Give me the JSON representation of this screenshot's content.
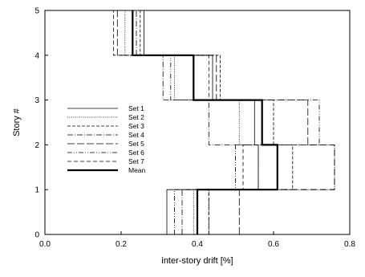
{
  "chart_data": {
    "type": "line",
    "title": "",
    "xlabel": "inter-story drift [%]",
    "ylabel": "Story #",
    "xlim": [
      0,
      0.8
    ],
    "ylim": [
      0,
      5
    ],
    "xticks": [
      "0.0",
      "0.2",
      "0.4",
      "0.6",
      "0.8"
    ],
    "yticks": [
      "0",
      "1",
      "2",
      "3",
      "4",
      "5"
    ],
    "grid": false,
    "legend_position": "left",
    "stories": [
      1,
      2,
      3,
      4,
      5
    ],
    "series": [
      {
        "name": "Set 1",
        "dash": "",
        "width": 0.8,
        "values": [
          0.32,
          0.56,
          0.55,
          0.44,
          0.26
        ]
      },
      {
        "name": "Set 2",
        "dash": "1,1.5",
        "width": 0.8,
        "values": [
          0.39,
          0.56,
          0.51,
          0.34,
          0.21
        ]
      },
      {
        "name": "Set 3",
        "dash": "4,2",
        "width": 0.8,
        "values": [
          0.43,
          0.65,
          0.6,
          0.46,
          0.25
        ]
      },
      {
        "name": "Set 4",
        "dash": "7,2,1,2",
        "width": 0.8,
        "values": [
          0.36,
          0.76,
          0.43,
          0.31,
          0.24
        ]
      },
      {
        "name": "Set 5",
        "dash": "9,3",
        "width": 0.8,
        "values": [
          0.51,
          0.76,
          0.69,
          0.45,
          0.19
        ]
      },
      {
        "name": "Set 6",
        "dash": "6,2,1,2,1,2",
        "width": 0.8,
        "values": [
          0.34,
          0.5,
          0.72,
          0.33,
          0.23
        ]
      },
      {
        "name": "Set 7",
        "dash": "5,3",
        "width": 0.8,
        "values": [
          0.43,
          0.52,
          0.57,
          0.43,
          0.18
        ]
      },
      {
        "name": "Mean",
        "dash": "",
        "width": 2.2,
        "values": [
          0.4,
          0.61,
          0.57,
          0.39,
          0.23
        ]
      }
    ]
  }
}
